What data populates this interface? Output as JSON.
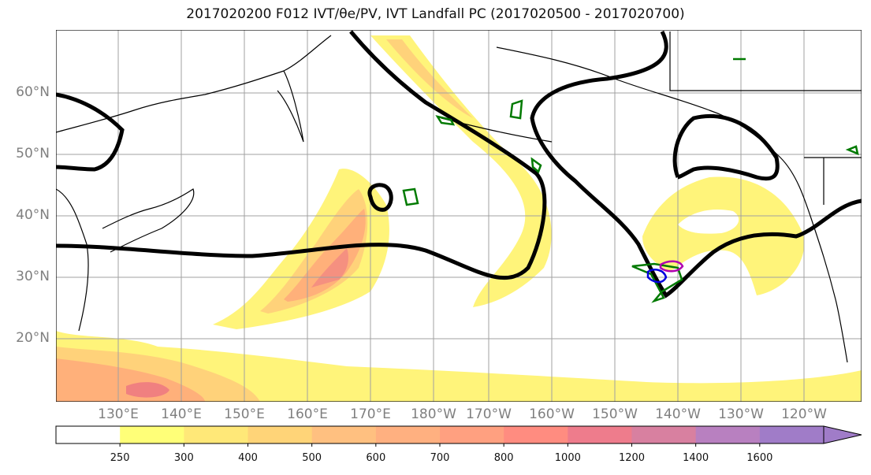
{
  "title": "2017020200 F012 IVT/θe/PV, IVT Landfall PC (2017020500 - 2017020700)",
  "lat_labels": [
    "60°N",
    "50°N",
    "40°N",
    "30°N",
    "20°N"
  ],
  "lon_labels": [
    "130°E",
    "140°E",
    "150°E",
    "160°E",
    "170°E",
    "180°W",
    "170°W",
    "160°W",
    "150°W",
    "140°W",
    "130°W",
    "120°W"
  ],
  "colorbar": {
    "ticks": [
      "250",
      "300",
      "400",
      "500",
      "600",
      "700",
      "800",
      "1000",
      "1200",
      "1400",
      "1600"
    ],
    "colors": [
      "#ffffff",
      "#ffff78",
      "#ffe878",
      "#ffd478",
      "#ffc080",
      "#ffb080",
      "#ffa080",
      "#ff8c80",
      "#ee7c8c",
      "#d880a0",
      "#b880c0",
      "#a07cc8"
    ]
  },
  "colors": {
    "ivt_low": "#fff47a",
    "ivt_mid": "#ffd27a",
    "ivt_high": "#ffa07a",
    "ivt_peak": "#f08080",
    "pv_contour": "#000000",
    "pc_green": "#007a00",
    "pc_blue": "#0000dd",
    "pc_magenta": "#b000b0",
    "coast": "#000000",
    "grid": "#a0a0a0"
  }
}
